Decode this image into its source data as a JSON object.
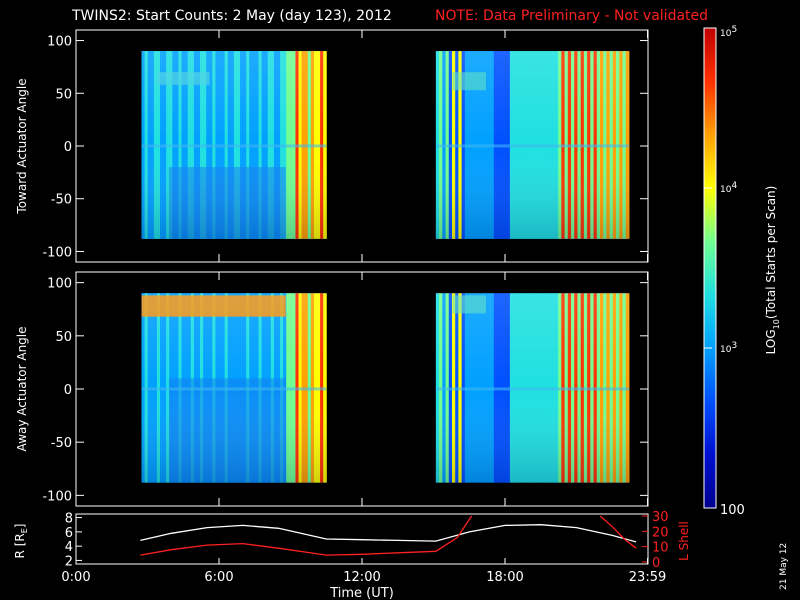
{
  "header": {
    "title": "TWINS2: Start Counts:  2 May (day 123), 2012",
    "note": "NOTE: Data Preliminary - Not validated"
  },
  "side_date": "21 May 12",
  "chart_data": [
    {
      "type": "heatmap",
      "ylabel": "Toward Actuator Angle",
      "ylim": [
        -110,
        110
      ],
      "yticks": [
        100,
        50,
        0,
        -50,
        -100
      ],
      "xlim": [
        0,
        24
      ],
      "data_intervals_h": [
        [
          2.75,
          10.5
        ],
        [
          15.1,
          23.2
        ]
      ]
    },
    {
      "type": "heatmap",
      "ylabel": "Away Actuator Angle",
      "ylim": [
        -110,
        110
      ],
      "yticks": [
        100,
        50,
        0,
        -50,
        -100
      ],
      "xlim": [
        0,
        24
      ],
      "data_intervals_h": [
        [
          2.75,
          10.5
        ],
        [
          15.1,
          23.2
        ]
      ]
    },
    {
      "type": "line",
      "ylabel_left": "R [R",
      "ylabel_left_sub": "E",
      "ylabel_left_end": "]",
      "ylabel_right": "L Shell",
      "yticks_left": [
        8,
        6,
        4,
        2
      ],
      "yticks_right": [
        30,
        20,
        10,
        0
      ],
      "xlabel": "Time (UT)",
      "xticks": [
        "0:00",
        "6:00",
        "12:00",
        "18:00",
        "23:59"
      ],
      "xtick_hours": [
        0,
        6,
        12,
        18,
        23.98
      ],
      "series": [
        {
          "color": "#ffffff",
          "x": [
            2.7,
            4,
            5.5,
            7,
            8.5,
            10.5,
            12,
            13.5,
            15.1,
            16.5,
            18,
            19.5,
            21,
            22.5,
            23.5
          ],
          "y": [
            4.8,
            5.8,
            6.6,
            6.9,
            6.5,
            5.0,
            4.9,
            4.8,
            4.7,
            6.0,
            6.9,
            7.0,
            6.6,
            5.5,
            4.6
          ]
        },
        {
          "color": "#ff2020",
          "x": [
            2.7,
            4,
            5.5,
            7,
            8.5,
            10.5,
            12,
            13.5,
            15.1,
            16,
            16.6
          ],
          "y": [
            4.5,
            8,
            11,
            12,
            9,
            4.5,
            5,
            6,
            7,
            16,
            30
          ]
        },
        {
          "color": "#ff2020",
          "x": [
            22.0,
            22.5,
            23.0,
            23.5
          ],
          "y": [
            30,
            23,
            15,
            9
          ]
        }
      ]
    }
  ],
  "colorbar": {
    "label": "LOG",
    "label_sub": "10",
    "label_end": "(Total Starts per Scan)",
    "ticks": [
      {
        "base": "10",
        "exp": "5",
        "value": 5
      },
      {
        "base": "10",
        "exp": "4",
        "value": 4
      },
      {
        "base": "10",
        "exp": "3",
        "value": 3
      },
      {
        "text": "100",
        "value": 2
      }
    ],
    "colors": [
      "#000090",
      "#0010d0",
      "#0050ff",
      "#00a0ff",
      "#20e0e0",
      "#70ff90",
      "#ffff00",
      "#ffa000",
      "#ff3000",
      "#c00000"
    ]
  }
}
